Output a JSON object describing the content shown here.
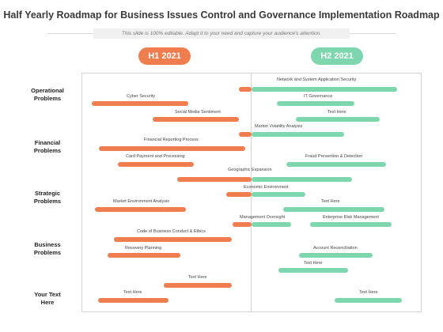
{
  "title": "Half Yearly Roadmap for Business Issues Control and Governance Implementation Roadmap",
  "subtitle": "This slide is 100% editable. Adapt it to your need and capture your audience's attention.",
  "periods": [
    "H1 2021",
    "H2 2021"
  ],
  "categories": [
    {
      "line1": "Operational",
      "line2": "Problems"
    },
    {
      "line1": "Financial",
      "line2": "Problems"
    },
    {
      "line1": "Strategic",
      "line2": "Problems"
    },
    {
      "line1": "Business",
      "line2": "Problems"
    },
    {
      "line1": "Your Text",
      "line2": "Here"
    }
  ],
  "tasks": [
    "Network and System Application Security",
    "Cyber Security",
    "IT Governance",
    "Social Media Sentiment",
    "Text Here",
    "Market Volatility Analysis",
    "Financial Reporting Process",
    "Card Payment and Processing",
    "Fraud Prevention & Detection",
    "Geographic Expansion",
    "Economic Environment",
    "Market Environment Analysis",
    "Text Here",
    "Management Oversight",
    "Enterprise Risk Management",
    "Code of Business Conduct & Ethics",
    "Recovery Planning",
    "Account Reconciliation",
    "Text Here",
    "Text Here",
    "Text Here",
    "Text Here"
  ],
  "colors": {
    "h1": "#ef7d4e",
    "h2": "#7dd6ae"
  }
}
